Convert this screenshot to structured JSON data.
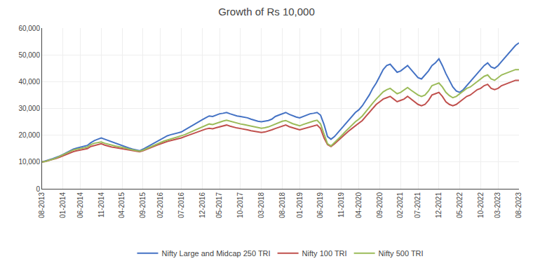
{
  "chart_data": {
    "type": "line",
    "title": "Growth of Rs 10,000",
    "categories": [
      "08-2013",
      null,
      null,
      null,
      null,
      null,
      "01-2014",
      null,
      null,
      null,
      null,
      "06-2014",
      null,
      null,
      null,
      null,
      null,
      "11-2014",
      null,
      null,
      null,
      null,
      null,
      "04-2015",
      null,
      null,
      null,
      null,
      null,
      "09-2015",
      null,
      null,
      null,
      null,
      "02-2016",
      null,
      null,
      null,
      null,
      null,
      "07-2016",
      null,
      null,
      null,
      null,
      null,
      "12-2016",
      null,
      null,
      null,
      null,
      "05-2017",
      null,
      null,
      null,
      null,
      null,
      "10-2017",
      null,
      null,
      null,
      null,
      null,
      "03-2018",
      null,
      null,
      null,
      null,
      null,
      "08-2018",
      null,
      null,
      null,
      null,
      "01-2019",
      null,
      null,
      null,
      null,
      null,
      "06-2019",
      null,
      null,
      null,
      null,
      null,
      "11-2019",
      null,
      null,
      null,
      null,
      "04-2020",
      null,
      null,
      null,
      null,
      null,
      "09-2020",
      null,
      null,
      null,
      null,
      null,
      "02-2021",
      null,
      null,
      null,
      null,
      "07-2021",
      null,
      null,
      null,
      null,
      null,
      "12-2021",
      null,
      null,
      null,
      null,
      null,
      "05-2022",
      null,
      null,
      null,
      null,
      null,
      "10-2022",
      null,
      null,
      null,
      null,
      "03-2023",
      null,
      null,
      null,
      null,
      null,
      "08-2023"
    ],
    "series": [
      {
        "name": "Nifty Large and Midcap 250 TRI",
        "color": "#4472C4",
        "values": [
          10000,
          10300,
          10800,
          11200,
          11600,
          12200,
          12800,
          13500,
          14200,
          14800,
          15200,
          15500,
          15800,
          16200,
          17200,
          18000,
          18500,
          19000,
          18500,
          18000,
          17500,
          17000,
          16500,
          16000,
          15700,
          15200,
          14800,
          14500,
          14200,
          14800,
          15500,
          16200,
          17000,
          17800,
          18500,
          19200,
          19800,
          20200,
          20500,
          20800,
          21200,
          22000,
          22800,
          23500,
          24200,
          25000,
          25800,
          26500,
          27200,
          27000,
          27500,
          28000,
          28200,
          28500,
          28000,
          27500,
          27200,
          27000,
          26800,
          26500,
          26000,
          25500,
          25200,
          25000,
          25200,
          25500,
          26000,
          27000,
          27500,
          28000,
          28500,
          27800,
          27200,
          26800,
          26500,
          27000,
          27500,
          28000,
          28200,
          28500,
          27500,
          24000,
          19500,
          18500,
          19500,
          21000,
          22500,
          24000,
          25500,
          27000,
          28500,
          29500,
          31000,
          33000,
          35000,
          37500,
          39500,
          42000,
          44500,
          46000,
          46500,
          45000,
          43500,
          44000,
          45000,
          46000,
          44500,
          43000,
          41500,
          41000,
          42500,
          44000,
          46000,
          47000,
          48500,
          46000,
          43000,
          40500,
          38000,
          36500,
          36000,
          37000,
          38500,
          40000,
          41500,
          43000,
          44500,
          46000,
          47000,
          45500,
          45000,
          46000,
          47500,
          49000,
          50500,
          52000,
          53500,
          54500
        ]
      },
      {
        "name": "Nifty 100 TRI",
        "color": "#C0504D",
        "values": [
          10000,
          10200,
          10600,
          10900,
          11300,
          11800,
          12300,
          12900,
          13500,
          13900,
          14200,
          14500,
          14800,
          15000,
          15800,
          16200,
          16500,
          16800,
          16300,
          15900,
          15600,
          15400,
          15200,
          15000,
          14800,
          14500,
          14200,
          14000,
          13800,
          14200,
          14800,
          15300,
          15800,
          16300,
          16800,
          17300,
          17700,
          18000,
          18300,
          18600,
          19000,
          19500,
          20000,
          20500,
          21000,
          21500,
          22000,
          22300,
          22600,
          22400,
          22800,
          23200,
          23500,
          23800,
          23400,
          23000,
          22700,
          22500,
          22300,
          22000,
          21700,
          21400,
          21200,
          21000,
          21200,
          21500,
          22000,
          22500,
          23000,
          23500,
          23800,
          23200,
          22700,
          22400,
          22000,
          22400,
          22800,
          23200,
          23500,
          23800,
          22500,
          19000,
          16500,
          15800,
          16800,
          18000,
          19200,
          20400,
          21500,
          22500,
          23500,
          24500,
          25500,
          27000,
          28500,
          30000,
          31500,
          32500,
          33500,
          34000,
          34500,
          33500,
          32500,
          33000,
          33500,
          34500,
          33500,
          32500,
          31500,
          31000,
          31500,
          33000,
          35000,
          35500,
          36000,
          34500,
          32500,
          31500,
          31000,
          31500,
          32500,
          33500,
          34500,
          35000,
          36000,
          37000,
          37500,
          38500,
          39000,
          37500,
          37000,
          37500,
          38500,
          39000,
          39500,
          40000,
          40500,
          40500
        ]
      },
      {
        "name": "Nifty 500 TRI",
        "color": "#9BBB59",
        "values": [
          10000,
          10200,
          10700,
          11000,
          11500,
          12100,
          12700,
          13300,
          14000,
          14500,
          14800,
          15000,
          15300,
          15600,
          16500,
          17000,
          17200,
          17500,
          17000,
          16600,
          16200,
          16000,
          15700,
          15500,
          15200,
          14800,
          14500,
          14200,
          14000,
          14400,
          15000,
          15600,
          16200,
          16800,
          17300,
          17800,
          18200,
          18600,
          18900,
          19200,
          19600,
          20200,
          20800,
          21400,
          22000,
          22600,
          23200,
          23700,
          24200,
          24000,
          24500,
          25000,
          25300,
          25600,
          25200,
          24800,
          24500,
          24200,
          24000,
          23700,
          23400,
          23100,
          22900,
          22600,
          22800,
          23100,
          23600,
          24200,
          24700,
          25200,
          25500,
          24800,
          24300,
          23900,
          23500,
          24000,
          24500,
          25000,
          25300,
          25600,
          24200,
          20500,
          16800,
          16000,
          17200,
          18500,
          19800,
          21200,
          22500,
          23800,
          25000,
          26000,
          27200,
          28800,
          30500,
          32000,
          33500,
          35000,
          36200,
          37000,
          37500,
          36500,
          35500,
          36000,
          36800,
          37800,
          36800,
          35800,
          35000,
          34500,
          35000,
          36500,
          38500,
          39000,
          39500,
          38000,
          36000,
          34800,
          34000,
          34500,
          35500,
          36500,
          37500,
          38000,
          39000,
          40000,
          41000,
          42000,
          42500,
          41000,
          40500,
          41500,
          42500,
          43000,
          43500,
          44000,
          44500,
          44500
        ]
      }
    ],
    "ylim": [
      0,
      60000
    ],
    "yticks": [
      0,
      {
        "value": 10000,
        "label": "10,000"
      },
      {
        "value": 20000,
        "label": "20,000"
      },
      {
        "value": 30000,
        "label": "30,000"
      },
      {
        "value": 40000,
        "label": "40,000"
      },
      {
        "value": 50000,
        "label": "50,000"
      },
      {
        "value": 60000,
        "label": "60,000"
      }
    ],
    "grid": true,
    "legend": "bottom"
  }
}
